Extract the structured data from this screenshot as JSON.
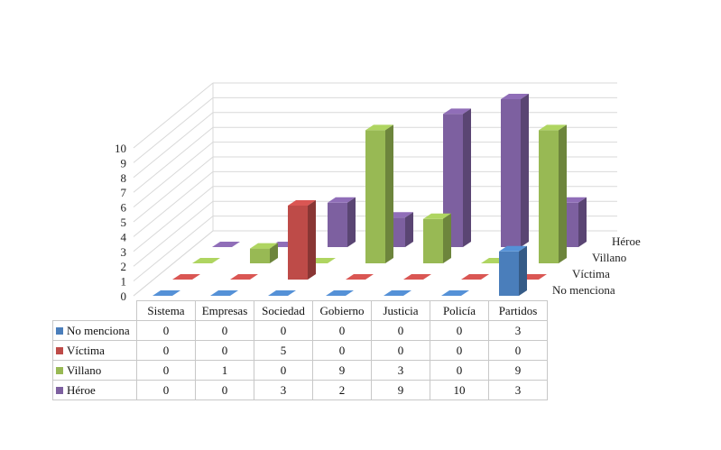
{
  "chart_data": {
    "type": "bar",
    "subtype": "3d-column",
    "categories": [
      "Sistema",
      "Empresas",
      "Sociedad",
      "Gobierno",
      "Justicia",
      "Policía",
      "Partidos"
    ],
    "series": [
      {
        "name": "No menciona",
        "values": [
          0,
          0,
          0,
          0,
          0,
          0,
          3
        ],
        "color": "#4a7ebb"
      },
      {
        "name": "Víctima",
        "values": [
          0,
          0,
          5,
          0,
          0,
          0,
          0
        ],
        "color": "#be4b48"
      },
      {
        "name": "Villano",
        "values": [
          0,
          1,
          0,
          9,
          3,
          0,
          9
        ],
        "color": "#98b954"
      },
      {
        "name": "Héroe",
        "values": [
          0,
          0,
          3,
          2,
          9,
          10,
          3
        ],
        "color": "#7d60a0"
      }
    ],
    "yticks": [
      "0",
      "1",
      "2",
      "3",
      "4",
      "5",
      "6",
      "7",
      "8",
      "9",
      "10"
    ],
    "ylim": [
      0,
      10
    ],
    "grid": true,
    "data_table": true,
    "legend": "data table"
  }
}
